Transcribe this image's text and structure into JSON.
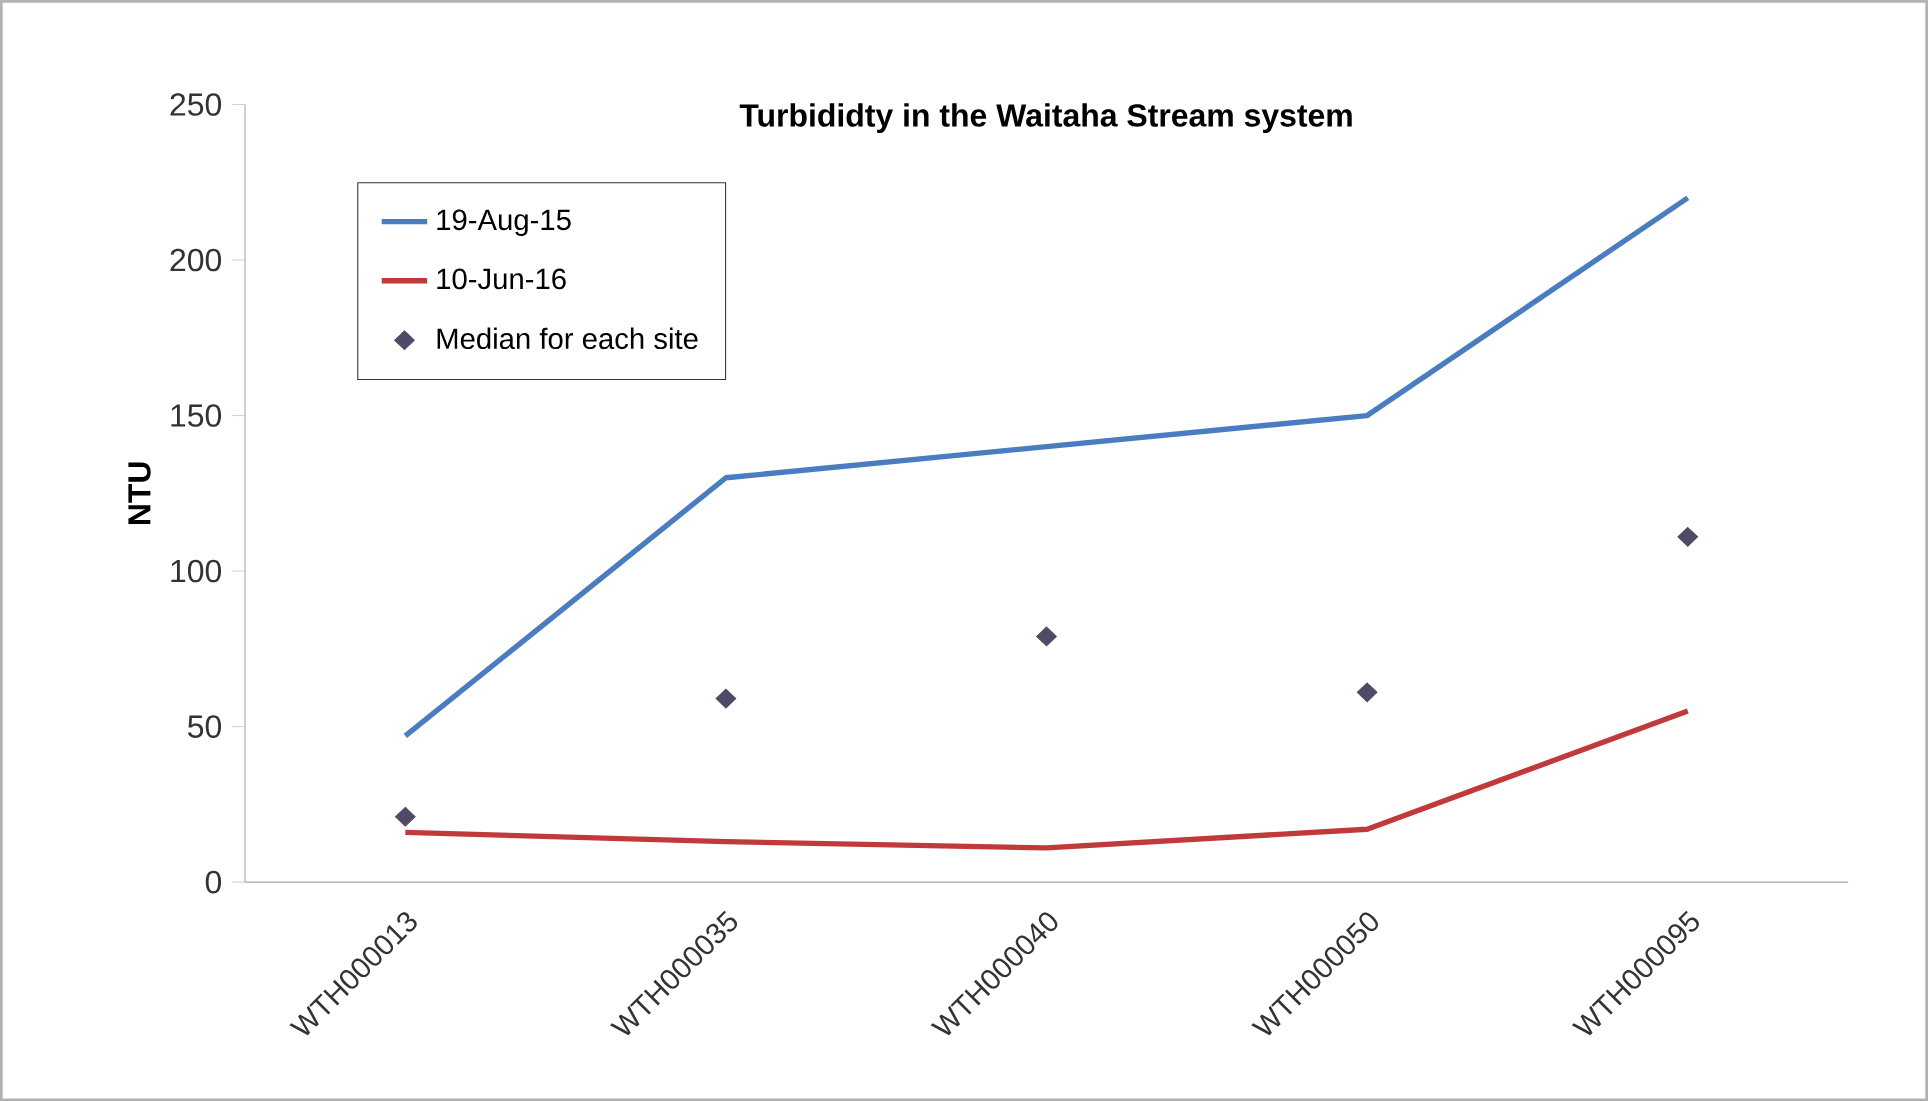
{
  "chart_data": {
    "type": "line",
    "title": "Turbididty in the Waitaha Stream system",
    "ylabel": "NTU",
    "categories": [
      "WTH000013",
      "WTH000035",
      "WTH000040",
      "WTH000050",
      "WTH000095"
    ],
    "series": [
      {
        "name": "19-Aug-15",
        "color": "#4a7cc0",
        "values": [
          47,
          130,
          140,
          150,
          220
        ]
      },
      {
        "name": "10-Jun-16",
        "color": "#c0393b",
        "values": [
          16,
          13,
          11,
          17,
          55
        ]
      },
      {
        "name": "Median for each site",
        "color": "#4f4b66",
        "type": "scatter",
        "marker": "diamond",
        "values": [
          21,
          59,
          79,
          61,
          111
        ]
      }
    ],
    "ylim": [
      0,
      250
    ],
    "yticks": [
      0,
      50,
      100,
      150,
      200,
      250
    ],
    "legend": "top left"
  }
}
